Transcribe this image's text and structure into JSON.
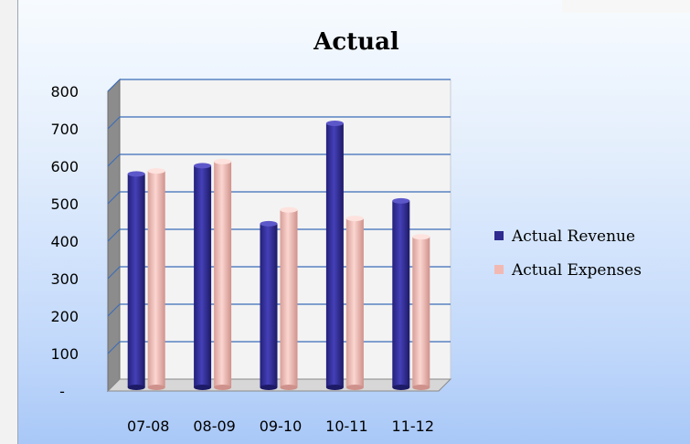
{
  "chart_data": {
    "type": "bar",
    "title": "Actual",
    "categories": [
      "07-08",
      "08-09",
      "09-10",
      "10-11",
      "11-12"
    ],
    "series": [
      {
        "name": "Actual Revenue",
        "values": [
          565,
          587,
          432,
          700,
          493
        ],
        "color": "#2e2a8f"
      },
      {
        "name": "Actual Expenses",
        "values": [
          573,
          598,
          469,
          446,
          397
        ],
        "color": "#f2b9b3"
      }
    ],
    "yticks": [
      "-",
      "100",
      "200",
      "300",
      "400",
      "500",
      "600",
      "700",
      "800"
    ],
    "ylim": [
      0,
      800
    ],
    "grid": true,
    "legend_position": "right",
    "style": "3d-column"
  }
}
